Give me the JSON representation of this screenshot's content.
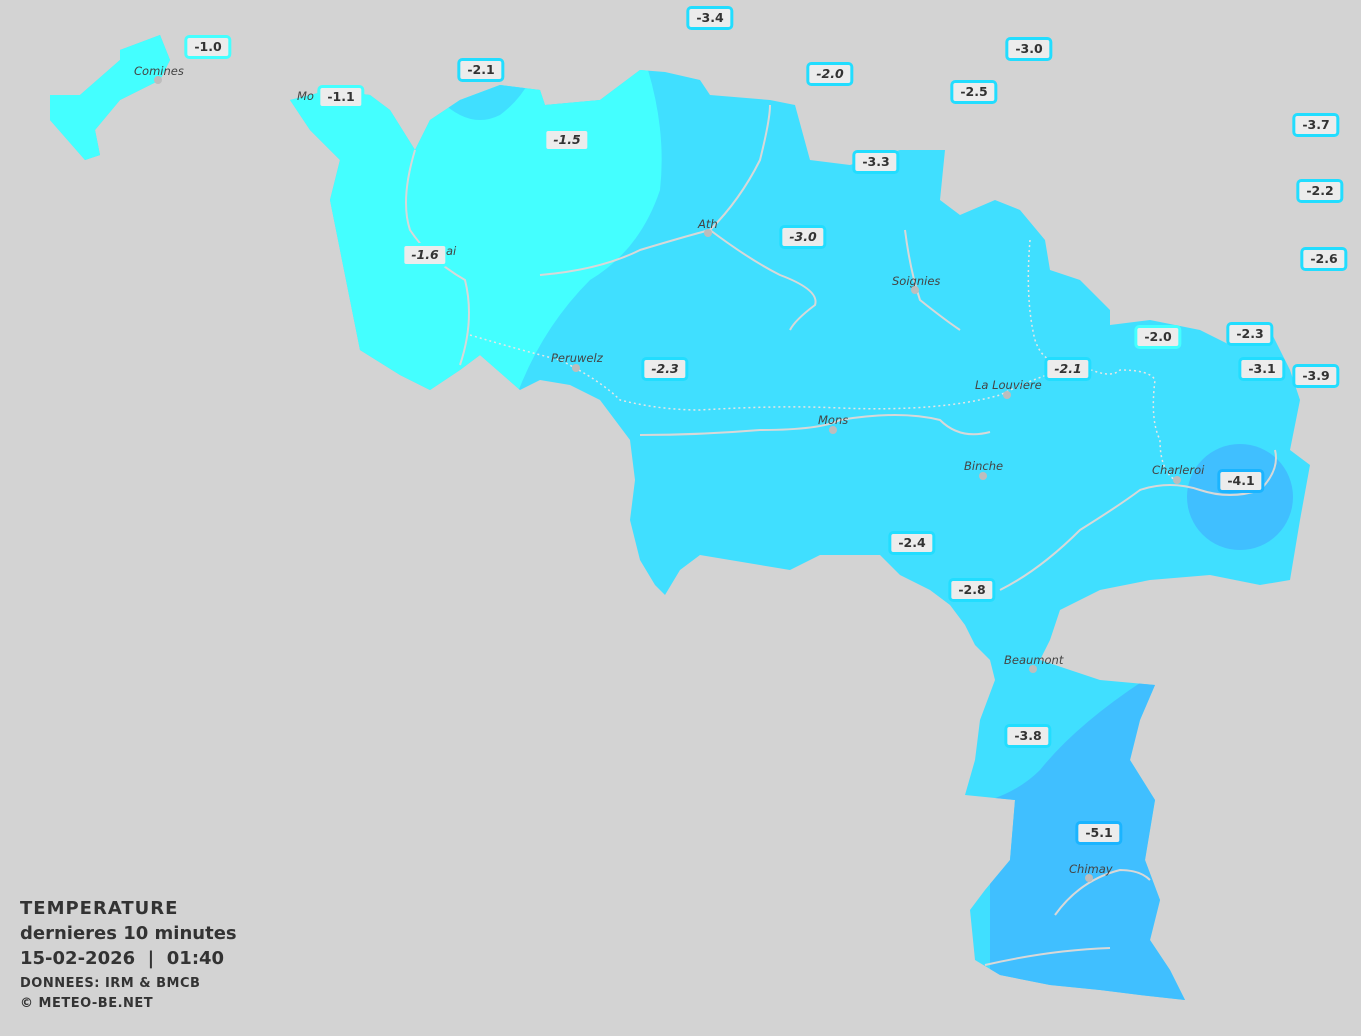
{
  "legend": {
    "title": "TEMPERATURE",
    "period": "dernieres 10 minutes",
    "datetime": "15-02-2026  |  01:40",
    "source": "DONNEES: IRM & BMCB",
    "copyright": "© METEO-BE.NET"
  },
  "colors": {
    "background": "#d3d3d3",
    "zone_minus1": "#44ffff",
    "zone_minus2_3": "#40dfff",
    "zone_minus4_5": "#40bfff",
    "rivers": "#d8d8d8"
  },
  "stations": [
    {
      "value": "-1.0"
    },
    {
      "value": "-1.1"
    },
    {
      "value": "-2.1"
    },
    {
      "value": "-3.4"
    },
    {
      "value": "-2.0"
    },
    {
      "value": "-3.0"
    },
    {
      "value": "-2.5"
    },
    {
      "value": "-1.5"
    },
    {
      "value": "-3.3"
    },
    {
      "value": "-3.7"
    },
    {
      "value": "-2.2"
    },
    {
      "value": "-3.0"
    },
    {
      "value": "-1.6"
    },
    {
      "value": "-2.6"
    },
    {
      "value": "-2.0"
    },
    {
      "value": "-2.3"
    },
    {
      "value": "-2.3"
    },
    {
      "value": "-2.1"
    },
    {
      "value": "-3.1"
    },
    {
      "value": "-3.9"
    },
    {
      "value": "-4.1"
    },
    {
      "value": "-2.4"
    },
    {
      "value": "-2.8"
    },
    {
      "value": "-3.8"
    },
    {
      "value": "-5.1"
    }
  ],
  "cities": [
    {
      "name": "Comines"
    },
    {
      "name": "Mo"
    },
    {
      "name": "ai"
    },
    {
      "name": "Ath"
    },
    {
      "name": "Soignies"
    },
    {
      "name": "Peruwelz"
    },
    {
      "name": "La Louviere"
    },
    {
      "name": "Mons"
    },
    {
      "name": "Binche"
    },
    {
      "name": "Charleroi"
    },
    {
      "name": "Beaumont"
    },
    {
      "name": "Chimay"
    }
  ]
}
